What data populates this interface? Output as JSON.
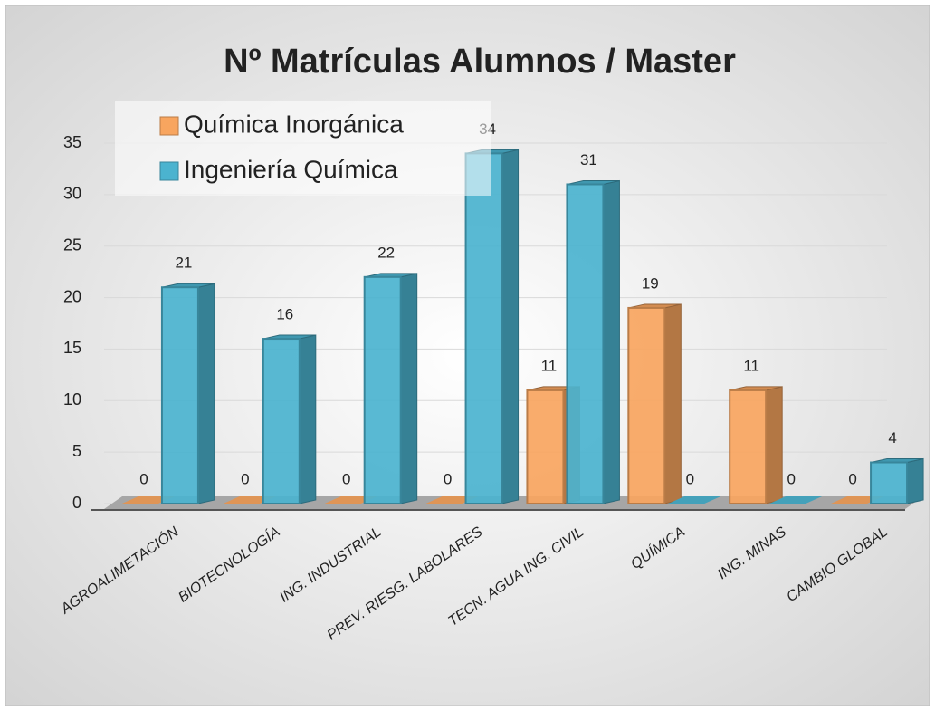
{
  "chart_data": {
    "type": "bar3d",
    "title": "Nº Matrículas Alumnos / Master",
    "categories": [
      "AGROALIMETACIÓN",
      "BIOTECNOLOGÍA",
      "ING. INDUSTRIAL",
      "PREV. RIESG. LABOLARES",
      "TECN. AGUA ING. CIVIL",
      "QUÍMICA",
      "ING. MINAS",
      "CAMBIO GLOBAL"
    ],
    "series": [
      {
        "name": "Química Inorgánica",
        "color": "#f8a55f",
        "values": [
          0,
          0,
          0,
          0,
          11,
          19,
          11,
          0
        ]
      },
      {
        "name": "Ingeniería Química",
        "color": "#4bb3cf",
        "values": [
          21,
          16,
          22,
          34,
          31,
          0,
          0,
          4
        ]
      }
    ],
    "ylim": [
      0,
      35
    ],
    "yticks": [
      0,
      5,
      10,
      15,
      20,
      25,
      30,
      35
    ],
    "grid": true,
    "legend": "top-left"
  }
}
